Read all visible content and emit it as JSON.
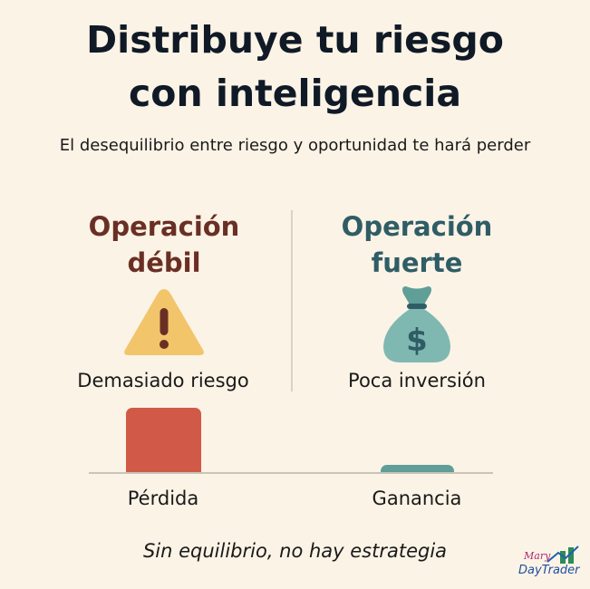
{
  "title": {
    "line1": "Distribuye tu riesgo",
    "line2": "con inteligencia"
  },
  "subtitle": "El desequilibrio entre riesgo y oportunidad te hará perder",
  "weak": {
    "title_line1": "Operación",
    "title_line2": "débil",
    "icon": "warning-triangle-icon",
    "label": "Demasiado riesgo",
    "bar_label": "Pérdida",
    "bar_value": 1.0,
    "color": "#d05a47"
  },
  "strong": {
    "title_line1": "Operación",
    "title_line2": "fuerte",
    "icon": "money-bag-icon",
    "label": "Poca inversión",
    "bar_label": "Ganancia",
    "bar_value": 0.12,
    "color": "#5f9f98"
  },
  "footer": "Sin equilibrio, no hay estrategia",
  "logo": {
    "line1": "Mary",
    "line2": "DayTrader"
  }
}
